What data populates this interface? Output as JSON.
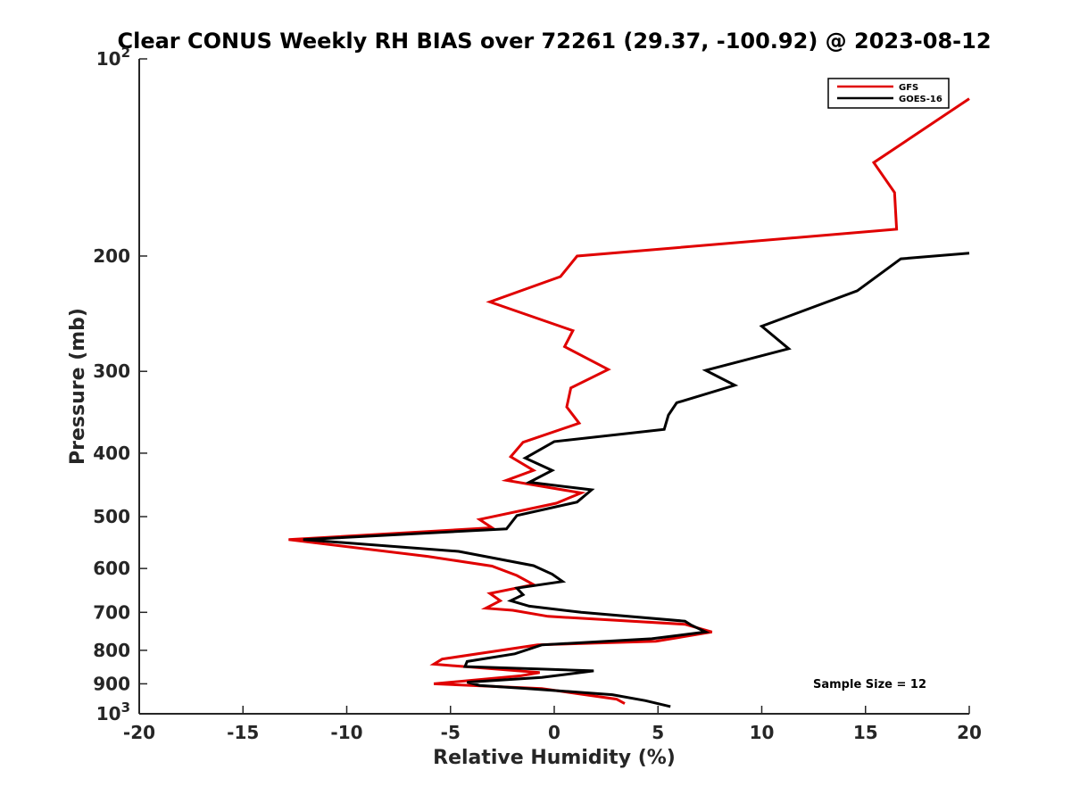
{
  "chart_data": {
    "type": "line",
    "title": "Clear CONUS Weekly RH BIAS over 72261 (29.37, -100.92) @ 2023-08-12",
    "xlabel": "Relative Humidity (%)",
    "ylabel": "Pressure (mb)",
    "xlim": [
      -20,
      20
    ],
    "ylim": [
      1000,
      100
    ],
    "y_scale": "log",
    "x_ticks": [
      -20,
      -15,
      -10,
      -5,
      0,
      5,
      10,
      15,
      20
    ],
    "x_tick_labels": [
      "-20",
      "-15",
      "-10",
      "-5",
      "0",
      "5",
      "10",
      "15",
      "20"
    ],
    "y_ticks": [
      100,
      200,
      300,
      400,
      500,
      600,
      700,
      800,
      900,
      1000
    ],
    "y_tick_labels": [
      {
        "base": "10",
        "exp": "2"
      },
      {
        "base": "200",
        "exp": ""
      },
      {
        "base": "300",
        "exp": ""
      },
      {
        "base": "400",
        "exp": ""
      },
      {
        "base": "500",
        "exp": ""
      },
      {
        "base": "600",
        "exp": ""
      },
      {
        "base": "700",
        "exp": ""
      },
      {
        "base": "800",
        "exp": ""
      },
      {
        "base": "900",
        "exp": ""
      },
      {
        "base": "10",
        "exp": "3"
      }
    ],
    "grid": false,
    "legend_position": "top-right",
    "annotation": "Sample Size = 12",
    "series": [
      {
        "name": "GFS",
        "color": "#e00000",
        "points": [
          [
            20.0,
            115
          ],
          [
            15.4,
            144
          ],
          [
            16.4,
            160
          ],
          [
            16.5,
            182
          ],
          [
            1.1,
            200
          ],
          [
            0.3,
            215
          ],
          [
            -3.1,
            235
          ],
          [
            0.9,
            260
          ],
          [
            0.5,
            275
          ],
          [
            2.6,
            298
          ],
          [
            0.8,
            318
          ],
          [
            0.6,
            340
          ],
          [
            1.2,
            360
          ],
          [
            -1.5,
            385
          ],
          [
            -2.1,
            405
          ],
          [
            -1.0,
            425
          ],
          [
            -2.3,
            440
          ],
          [
            1.3,
            460
          ],
          [
            0.1,
            477
          ],
          [
            -3.6,
            505
          ],
          [
            -3.0,
            520
          ],
          [
            -12.8,
            542
          ],
          [
            -6.1,
            575
          ],
          [
            -3.0,
            595
          ],
          [
            -1.8,
            615
          ],
          [
            -1.0,
            635
          ],
          [
            -3.1,
            655
          ],
          [
            -2.6,
            672
          ],
          [
            -3.3,
            690
          ],
          [
            -2.0,
            695
          ],
          [
            -0.3,
            710
          ],
          [
            6.3,
            730
          ],
          [
            7.6,
            750
          ],
          [
            4.9,
            775
          ],
          [
            -0.8,
            785
          ],
          [
            -5.4,
            825
          ],
          [
            -5.8,
            840
          ],
          [
            -0.7,
            865
          ],
          [
            -1.6,
            875
          ],
          [
            -5.8,
            900
          ],
          [
            -0.6,
            915
          ],
          [
            3.0,
            950
          ],
          [
            3.4,
            965
          ]
        ]
      },
      {
        "name": "GOES-16",
        "color": "#000000",
        "points": [
          [
            20.0,
            198
          ],
          [
            16.7,
            202
          ],
          [
            14.6,
            226
          ],
          [
            10.0,
            256
          ],
          [
            11.3,
            277
          ],
          [
            7.3,
            299
          ],
          [
            8.7,
            315
          ],
          [
            5.9,
            335
          ],
          [
            5.5,
            350
          ],
          [
            5.3,
            368
          ],
          [
            0.0,
            384
          ],
          [
            -1.4,
            407
          ],
          [
            -0.1,
            425
          ],
          [
            -1.2,
            443
          ],
          [
            1.8,
            455
          ],
          [
            1.1,
            475
          ],
          [
            -1.8,
            498
          ],
          [
            -2.3,
            522
          ],
          [
            -12.1,
            542
          ],
          [
            -4.6,
            565
          ],
          [
            -1.0,
            594
          ],
          [
            -0.1,
            612
          ],
          [
            0.4,
            628
          ],
          [
            -1.8,
            643
          ],
          [
            -1.5,
            658
          ],
          [
            -2.1,
            672
          ],
          [
            -1.2,
            685
          ],
          [
            1.3,
            700
          ],
          [
            6.3,
            722
          ],
          [
            6.6,
            732
          ],
          [
            7.3,
            750
          ],
          [
            4.7,
            768
          ],
          [
            -0.6,
            785
          ],
          [
            -1.9,
            810
          ],
          [
            -4.2,
            832
          ],
          [
            -4.3,
            847
          ],
          [
            -0.3,
            855
          ],
          [
            1.9,
            860
          ],
          [
            -0.6,
            880
          ],
          [
            -4.2,
            895
          ],
          [
            -3.6,
            905
          ],
          [
            -1.3,
            915
          ],
          [
            2.8,
            935
          ],
          [
            4.4,
            955
          ],
          [
            5.6,
            975
          ]
        ]
      }
    ]
  }
}
